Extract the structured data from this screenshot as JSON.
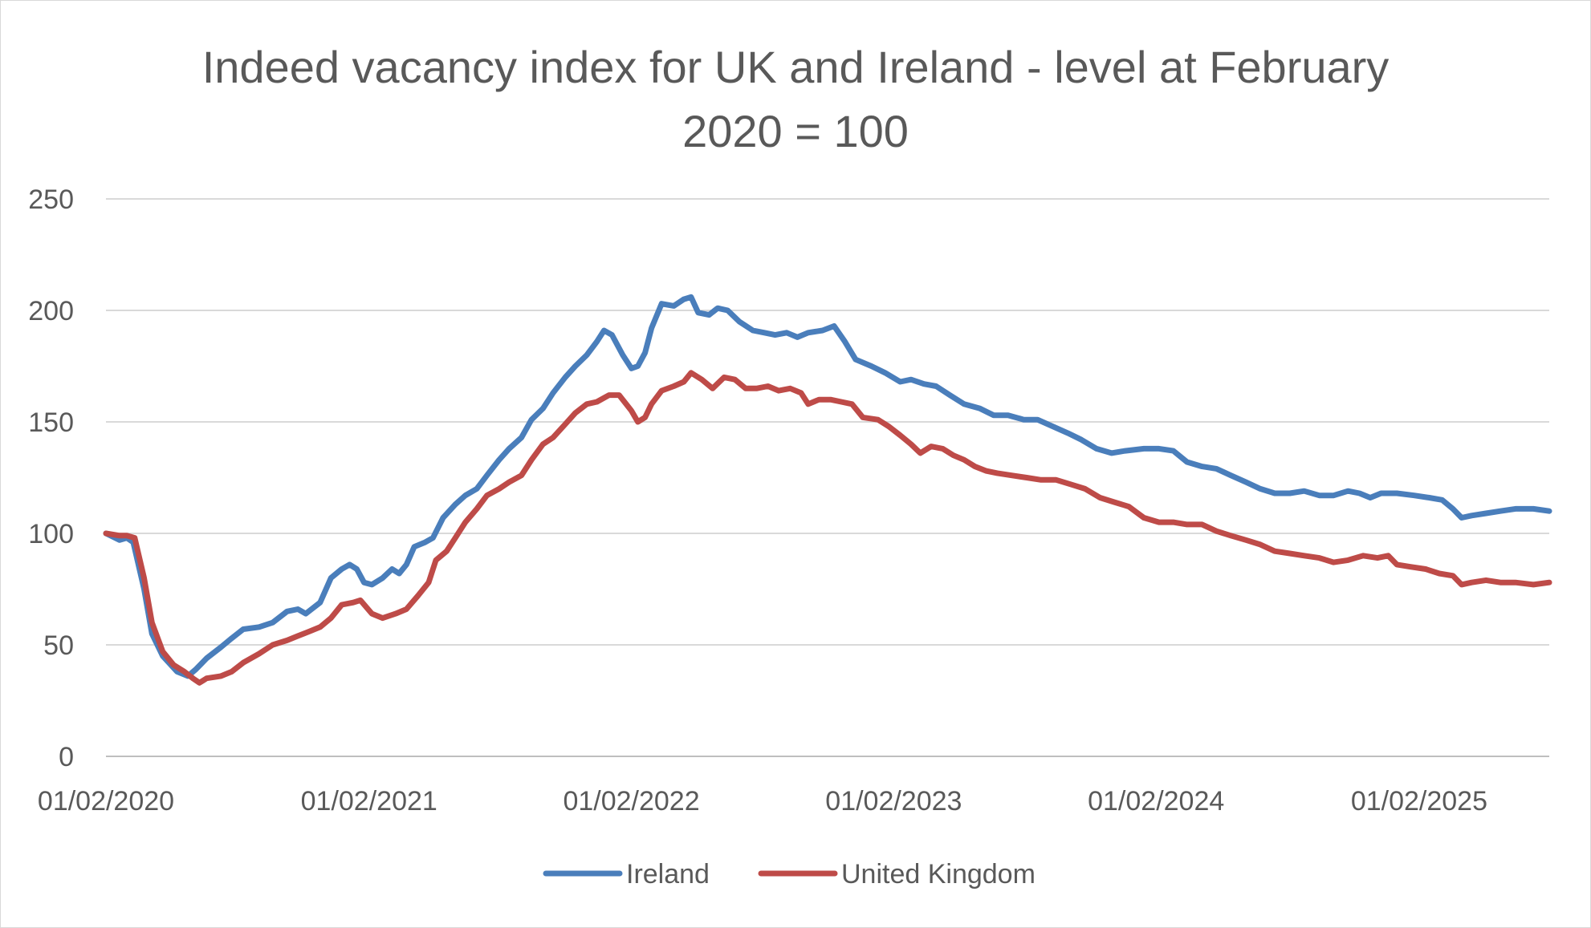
{
  "chart_data": {
    "type": "line",
    "title_line1": "Indeed vacancy index for UK and Ireland - level at February",
    "title_line2": "2020 = 100",
    "xlabel": "",
    "ylabel": "",
    "ylim": [
      0,
      250
    ],
    "yticks": [
      0,
      50,
      100,
      150,
      200,
      250
    ],
    "xlim": [
      "2020-02-01",
      "2025-08-01"
    ],
    "xticks": [
      "01/02/2020",
      "01/02/2021",
      "01/02/2022",
      "01/02/2023",
      "01/02/2024",
      "01/02/2025"
    ],
    "grid": "horizontal",
    "legend_position": "bottom",
    "series": [
      {
        "name": "Ireland",
        "color": "#4a7ebb",
        "points": [
          [
            "2020-02-01",
            100
          ],
          [
            "2020-02-20",
            97
          ],
          [
            "2020-03-01",
            98
          ],
          [
            "2020-03-10",
            96
          ],
          [
            "2020-03-25",
            75
          ],
          [
            "2020-04-05",
            55
          ],
          [
            "2020-04-20",
            45
          ],
          [
            "2020-05-10",
            38
          ],
          [
            "2020-05-25",
            36
          ],
          [
            "2020-06-05",
            39
          ],
          [
            "2020-06-20",
            44
          ],
          [
            "2020-07-10",
            49
          ],
          [
            "2020-07-25",
            53
          ],
          [
            "2020-08-10",
            57
          ],
          [
            "2020-09-01",
            58
          ],
          [
            "2020-09-20",
            60
          ],
          [
            "2020-10-10",
            65
          ],
          [
            "2020-10-25",
            66
          ],
          [
            "2020-11-05",
            64
          ],
          [
            "2020-11-25",
            69
          ],
          [
            "2020-12-10",
            80
          ],
          [
            "2020-12-25",
            84
          ],
          [
            "2021-01-05",
            86
          ],
          [
            "2021-01-15",
            84
          ],
          [
            "2021-01-25",
            78
          ],
          [
            "2021-02-05",
            77
          ],
          [
            "2021-02-20",
            80
          ],
          [
            "2021-03-05",
            84
          ],
          [
            "2021-03-15",
            82
          ],
          [
            "2021-03-25",
            86
          ],
          [
            "2021-04-05",
            94
          ],
          [
            "2021-04-20",
            96
          ],
          [
            "2021-05-01",
            98
          ],
          [
            "2021-05-15",
            107
          ],
          [
            "2021-06-01",
            113
          ],
          [
            "2021-06-15",
            117
          ],
          [
            "2021-07-01",
            120
          ],
          [
            "2021-07-15",
            126
          ],
          [
            "2021-08-01",
            133
          ],
          [
            "2021-08-15",
            138
          ],
          [
            "2021-09-01",
            143
          ],
          [
            "2021-09-15",
            151
          ],
          [
            "2021-10-01",
            156
          ],
          [
            "2021-10-15",
            163
          ],
          [
            "2021-11-01",
            170
          ],
          [
            "2021-11-15",
            175
          ],
          [
            "2021-12-01",
            180
          ],
          [
            "2021-12-15",
            186
          ],
          [
            "2021-12-25",
            191
          ],
          [
            "2022-01-05",
            189
          ],
          [
            "2022-01-20",
            180
          ],
          [
            "2022-02-01",
            174
          ],
          [
            "2022-02-10",
            175
          ],
          [
            "2022-02-20",
            181
          ],
          [
            "2022-03-01",
            192
          ],
          [
            "2022-03-15",
            203
          ],
          [
            "2022-04-01",
            202
          ],
          [
            "2022-04-15",
            205
          ],
          [
            "2022-04-25",
            206
          ],
          [
            "2022-05-05",
            199
          ],
          [
            "2022-05-20",
            198
          ],
          [
            "2022-06-01",
            201
          ],
          [
            "2022-06-15",
            200
          ],
          [
            "2022-07-01",
            195
          ],
          [
            "2022-07-20",
            191
          ],
          [
            "2022-08-05",
            190
          ],
          [
            "2022-08-20",
            189
          ],
          [
            "2022-09-05",
            190
          ],
          [
            "2022-09-20",
            188
          ],
          [
            "2022-10-05",
            190
          ],
          [
            "2022-10-25",
            191
          ],
          [
            "2022-11-10",
            193
          ],
          [
            "2022-11-25",
            186
          ],
          [
            "2022-12-10",
            178
          ],
          [
            "2023-01-01",
            175
          ],
          [
            "2023-01-20",
            172
          ],
          [
            "2023-02-10",
            168
          ],
          [
            "2023-02-25",
            169
          ],
          [
            "2023-03-15",
            167
          ],
          [
            "2023-04-01",
            166
          ],
          [
            "2023-04-20",
            162
          ],
          [
            "2023-05-10",
            158
          ],
          [
            "2023-06-01",
            156
          ],
          [
            "2023-06-20",
            153
          ],
          [
            "2023-07-10",
            153
          ],
          [
            "2023-08-01",
            151
          ],
          [
            "2023-08-20",
            151
          ],
          [
            "2023-09-10",
            148
          ],
          [
            "2023-10-01",
            145
          ],
          [
            "2023-10-20",
            142
          ],
          [
            "2023-11-10",
            138
          ],
          [
            "2023-12-01",
            136
          ],
          [
            "2023-12-20",
            137
          ],
          [
            "2024-01-15",
            138
          ],
          [
            "2024-02-05",
            138
          ],
          [
            "2024-02-25",
            137
          ],
          [
            "2024-03-15",
            132
          ],
          [
            "2024-04-05",
            130
          ],
          [
            "2024-04-25",
            129
          ],
          [
            "2024-05-15",
            126
          ],
          [
            "2024-06-05",
            123
          ],
          [
            "2024-06-25",
            120
          ],
          [
            "2024-07-15",
            118
          ],
          [
            "2024-08-05",
            118
          ],
          [
            "2024-08-25",
            119
          ],
          [
            "2024-09-15",
            117
          ],
          [
            "2024-10-05",
            117
          ],
          [
            "2024-10-25",
            119
          ],
          [
            "2024-11-10",
            118
          ],
          [
            "2024-11-25",
            116
          ],
          [
            "2024-12-10",
            118
          ],
          [
            "2025-01-01",
            118
          ],
          [
            "2025-01-25",
            117
          ],
          [
            "2025-02-15",
            116
          ],
          [
            "2025-03-05",
            115
          ],
          [
            "2025-03-20",
            111
          ],
          [
            "2025-04-01",
            107
          ],
          [
            "2025-04-15",
            108
          ],
          [
            "2025-05-05",
            109
          ],
          [
            "2025-05-25",
            110
          ],
          [
            "2025-06-15",
            111
          ],
          [
            "2025-07-10",
            111
          ],
          [
            "2025-08-01",
            110
          ]
        ]
      },
      {
        "name": "United Kingdom",
        "color": "#be4b48",
        "points": [
          [
            "2020-02-01",
            100
          ],
          [
            "2020-02-20",
            99
          ],
          [
            "2020-03-01",
            99
          ],
          [
            "2020-03-12",
            98
          ],
          [
            "2020-03-25",
            80
          ],
          [
            "2020-04-05",
            60
          ],
          [
            "2020-04-20",
            47
          ],
          [
            "2020-05-05",
            41
          ],
          [
            "2020-05-20",
            38
          ],
          [
            "2020-06-01",
            35
          ],
          [
            "2020-06-10",
            33
          ],
          [
            "2020-06-20",
            35
          ],
          [
            "2020-07-10",
            36
          ],
          [
            "2020-07-25",
            38
          ],
          [
            "2020-08-10",
            42
          ],
          [
            "2020-09-01",
            46
          ],
          [
            "2020-09-20",
            50
          ],
          [
            "2020-10-10",
            52
          ],
          [
            "2020-10-25",
            54
          ],
          [
            "2020-11-10",
            56
          ],
          [
            "2020-11-25",
            58
          ],
          [
            "2020-12-10",
            62
          ],
          [
            "2020-12-25",
            68
          ],
          [
            "2021-01-10",
            69
          ],
          [
            "2021-01-20",
            70
          ],
          [
            "2021-02-05",
            64
          ],
          [
            "2021-02-20",
            62
          ],
          [
            "2021-03-10",
            64
          ],
          [
            "2021-03-25",
            66
          ],
          [
            "2021-04-10",
            72
          ],
          [
            "2021-04-25",
            78
          ],
          [
            "2021-05-05",
            88
          ],
          [
            "2021-05-20",
            92
          ],
          [
            "2021-06-01",
            98
          ],
          [
            "2021-06-15",
            105
          ],
          [
            "2021-07-01",
            111
          ],
          [
            "2021-07-15",
            117
          ],
          [
            "2021-08-01",
            120
          ],
          [
            "2021-08-15",
            123
          ],
          [
            "2021-09-01",
            126
          ],
          [
            "2021-09-15",
            133
          ],
          [
            "2021-10-01",
            140
          ],
          [
            "2021-10-15",
            143
          ],
          [
            "2021-11-01",
            149
          ],
          [
            "2021-11-15",
            154
          ],
          [
            "2021-12-01",
            158
          ],
          [
            "2021-12-15",
            159
          ],
          [
            "2022-01-01",
            162
          ],
          [
            "2022-01-15",
            162
          ],
          [
            "2022-02-01",
            155
          ],
          [
            "2022-02-10",
            150
          ],
          [
            "2022-02-20",
            152
          ],
          [
            "2022-03-01",
            158
          ],
          [
            "2022-03-15",
            164
          ],
          [
            "2022-04-01",
            166
          ],
          [
            "2022-04-15",
            168
          ],
          [
            "2022-04-25",
            172
          ],
          [
            "2022-05-10",
            169
          ],
          [
            "2022-05-25",
            165
          ],
          [
            "2022-06-10",
            170
          ],
          [
            "2022-06-25",
            169
          ],
          [
            "2022-07-10",
            165
          ],
          [
            "2022-07-25",
            165
          ],
          [
            "2022-08-10",
            166
          ],
          [
            "2022-08-25",
            164
          ],
          [
            "2022-09-10",
            165
          ],
          [
            "2022-09-25",
            163
          ],
          [
            "2022-10-05",
            158
          ],
          [
            "2022-10-20",
            160
          ],
          [
            "2022-11-05",
            160
          ],
          [
            "2022-11-20",
            159
          ],
          [
            "2022-12-05",
            158
          ],
          [
            "2022-12-20",
            152
          ],
          [
            "2023-01-10",
            151
          ],
          [
            "2023-01-25",
            148
          ],
          [
            "2023-02-10",
            144
          ],
          [
            "2023-02-25",
            140
          ],
          [
            "2023-03-10",
            136
          ],
          [
            "2023-03-25",
            139
          ],
          [
            "2023-04-10",
            138
          ],
          [
            "2023-04-25",
            135
          ],
          [
            "2023-05-10",
            133
          ],
          [
            "2023-05-25",
            130
          ],
          [
            "2023-06-10",
            128
          ],
          [
            "2023-06-25",
            127
          ],
          [
            "2023-07-15",
            126
          ],
          [
            "2023-08-05",
            125
          ],
          [
            "2023-08-25",
            124
          ],
          [
            "2023-09-15",
            124
          ],
          [
            "2023-10-05",
            122
          ],
          [
            "2023-10-25",
            120
          ],
          [
            "2023-11-15",
            116
          ],
          [
            "2023-12-05",
            114
          ],
          [
            "2023-12-25",
            112
          ],
          [
            "2024-01-15",
            107
          ],
          [
            "2024-02-05",
            105
          ],
          [
            "2024-02-25",
            105
          ],
          [
            "2024-03-15",
            104
          ],
          [
            "2024-04-05",
            104
          ],
          [
            "2024-04-25",
            101
          ],
          [
            "2024-05-15",
            99
          ],
          [
            "2024-06-05",
            97
          ],
          [
            "2024-06-25",
            95
          ],
          [
            "2024-07-15",
            92
          ],
          [
            "2024-08-05",
            91
          ],
          [
            "2024-08-25",
            90
          ],
          [
            "2024-09-15",
            89
          ],
          [
            "2024-10-05",
            87
          ],
          [
            "2024-10-25",
            88
          ],
          [
            "2024-11-15",
            90
          ],
          [
            "2024-12-05",
            89
          ],
          [
            "2024-12-20",
            90
          ],
          [
            "2025-01-01",
            86
          ],
          [
            "2025-01-20",
            85
          ],
          [
            "2025-02-10",
            84
          ],
          [
            "2025-03-01",
            82
          ],
          [
            "2025-03-20",
            81
          ],
          [
            "2025-04-01",
            77
          ],
          [
            "2025-04-15",
            78
          ],
          [
            "2025-05-05",
            79
          ],
          [
            "2025-05-25",
            78
          ],
          [
            "2025-06-15",
            78
          ],
          [
            "2025-07-10",
            77
          ],
          [
            "2025-08-01",
            78
          ]
        ]
      }
    ]
  }
}
